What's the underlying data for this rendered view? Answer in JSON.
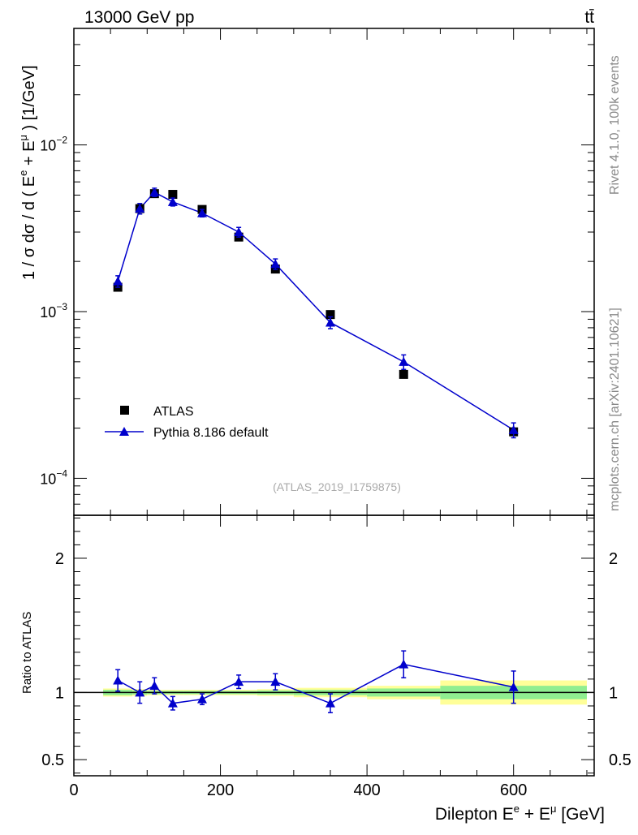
{
  "header": {
    "energy_label": "13000 GeV pp",
    "process_label": "tt̄"
  },
  "side_text": {
    "rivet": "Rivet 4.1.0,  100k events",
    "mcplots": "mcplots.cern.ch [arXiv:2401.10621]"
  },
  "analysis_tag": "(ATLAS_2019_I1759875)",
  "legend": {
    "data_label": "ATLAS",
    "mc_label": "Pythia 8.186 default"
  },
  "colors": {
    "mc": "#0000cc",
    "data": "#000000",
    "band_inner": "#90ee90",
    "band_outer": "#ffff99"
  },
  "chart_data": [
    {
      "type": "scatter",
      "title": "",
      "ylabel": "1 / σ dσ / d ( E^e + E^μ ) [1/GeV]",
      "yscale": "log",
      "xlim": [
        0,
        710
      ],
      "ylim": [
        6e-05,
        0.05
      ],
      "ytick_labels": [
        {
          "value": 0.0001,
          "base": "10",
          "exp": "−4"
        },
        {
          "value": 0.001,
          "base": "10",
          "exp": "−3"
        },
        {
          "value": 0.01,
          "base": "10",
          "exp": "−2"
        }
      ],
      "series": [
        {
          "name": "ATLAS",
          "marker": "square",
          "x": [
            60,
            90,
            110,
            135,
            175,
            225,
            275,
            350,
            450,
            600
          ],
          "y": [
            0.0014,
            0.00415,
            0.0051,
            0.00505,
            0.0041,
            0.0028,
            0.0018,
            0.00096,
            0.00042,
            0.00019
          ]
        },
        {
          "name": "Pythia 8.186 default",
          "marker": "triangle",
          "x": [
            60,
            90,
            110,
            135,
            175,
            225,
            275,
            350,
            450,
            600
          ],
          "y": [
            0.00152,
            0.00415,
            0.0052,
            0.00455,
            0.0039,
            0.003,
            0.00193,
            0.00086,
            0.0005,
            0.000195
          ],
          "yerr": [
            0.00012,
            0.0003,
            0.0003,
            0.00025,
            0.0002,
            0.0002,
            0.00014,
            7e-05,
            5e-05,
            2e-05
          ]
        }
      ]
    },
    {
      "type": "line",
      "xlabel": "Dilepton E^e + E^μ [GeV]",
      "ylabel": "Ratio to ATLAS",
      "xlim": [
        0,
        710
      ],
      "ylim": [
        0.38,
        2.32
      ],
      "xtick_labels": [
        "0",
        "200",
        "400",
        "600"
      ],
      "xticks": [
        0,
        200,
        400,
        600
      ],
      "ytick_labels": [
        "0.5",
        "1",
        "2"
      ],
      "yticks": [
        0.5,
        1,
        2
      ],
      "bands": [
        {
          "x0": 40,
          "x1": 80,
          "inner": 0.02,
          "outer": 0.03
        },
        {
          "x0": 80,
          "x1": 100,
          "inner": 0.015,
          "outer": 0.025
        },
        {
          "x0": 100,
          "x1": 120,
          "inner": 0.012,
          "outer": 0.02
        },
        {
          "x0": 120,
          "x1": 150,
          "inner": 0.012,
          "outer": 0.02
        },
        {
          "x0": 150,
          "x1": 200,
          "inner": 0.012,
          "outer": 0.02
        },
        {
          "x0": 200,
          "x1": 250,
          "inner": 0.012,
          "outer": 0.02
        },
        {
          "x0": 250,
          "x1": 300,
          "inner": 0.015,
          "outer": 0.025
        },
        {
          "x0": 300,
          "x1": 400,
          "inner": 0.02,
          "outer": 0.035
        },
        {
          "x0": 400,
          "x1": 500,
          "inner": 0.03,
          "outer": 0.05
        },
        {
          "x0": 500,
          "x1": 700,
          "inner": 0.05,
          "outer": 0.09
        }
      ],
      "series": [
        {
          "name": "Pythia 8.186 default",
          "x": [
            60,
            90,
            110,
            135,
            175,
            225,
            275,
            350,
            450,
            600
          ],
          "ratio": [
            1.09,
            1.0,
            1.05,
            0.92,
            0.95,
            1.08,
            1.08,
            0.92,
            1.21,
            1.04
          ],
          "err": [
            0.08,
            0.08,
            0.06,
            0.05,
            0.04,
            0.05,
            0.06,
            0.07,
            0.1,
            0.12
          ]
        }
      ]
    }
  ]
}
